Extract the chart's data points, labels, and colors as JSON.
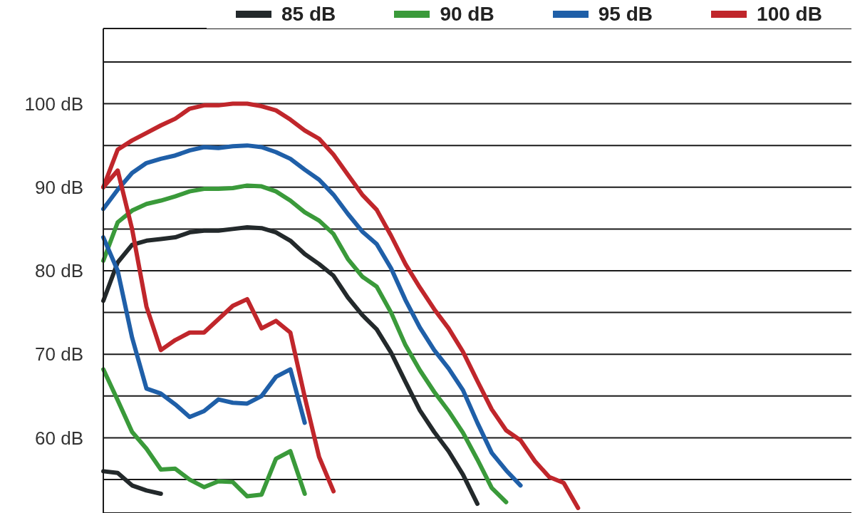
{
  "chart_data": {
    "type": "line",
    "grid": "y",
    "legend": "top",
    "tick_labels": "y",
    "marker": "none",
    "line_style": "solid",
    "categories": [
      null,
      null,
      null,
      null,
      null,
      null,
      null,
      null,
      null,
      null,
      null,
      null,
      null,
      null,
      null,
      null,
      null,
      null,
      null,
      null,
      null,
      null,
      null,
      null,
      null,
      null,
      null,
      null,
      null,
      null,
      null,
      null,
      null,
      null,
      null,
      null,
      null,
      null,
      null,
      null,
      null,
      null,
      null,
      null,
      null,
      null,
      null,
      null,
      null,
      null,
      null,
      null,
      null
    ],
    "ylim": [
      51,
      109
    ],
    "yticks": [
      {
        "value": 55,
        "label": null
      },
      {
        "value": 60,
        "label": "60 dB"
      },
      {
        "value": 65,
        "label": null
      },
      {
        "value": 70,
        "label": "70 dB"
      },
      {
        "value": 75,
        "label": null
      },
      {
        "value": 80,
        "label": "80 dB"
      },
      {
        "value": 85,
        "label": null
      },
      {
        "value": 90,
        "label": "90 dB"
      },
      {
        "value": 95,
        "label": null
      },
      {
        "value": 100,
        "label": "100 dB"
      },
      {
        "value": 105,
        "label": null
      }
    ],
    "series": [
      {
        "name": "85 dB",
        "color": "#23292b",
        "values": [
          76.4,
          81,
          83.1,
          83.6,
          83.8,
          84,
          84.6,
          84.8,
          84.8,
          85,
          85.2,
          85.1,
          84.6,
          83.6,
          82,
          80.8,
          79.4,
          76.8,
          74.7,
          73,
          70.2,
          66.7,
          63.3,
          60.7,
          58.4,
          55.6,
          52.1,
          null,
          null,
          null,
          null,
          null,
          null,
          null,
          null,
          null,
          null,
          null,
          null,
          null,
          null,
          null,
          null,
          null,
          null,
          null,
          null,
          null,
          null,
          null,
          null,
          null,
          null
        ]
      },
      {
        "name": "90 dB",
        "color": "#3a9a3a",
        "values": [
          81.2,
          85.8,
          87.2,
          88,
          88.4,
          88.9,
          89.5,
          89.8,
          89.8,
          89.9,
          90.2,
          90.1,
          89.5,
          88.4,
          87,
          86,
          84.4,
          81.4,
          79.3,
          78.1,
          75,
          71.1,
          68.1,
          65.5,
          63.2,
          60.6,
          57.4,
          54,
          52.3,
          null,
          null,
          null,
          null,
          null,
          null,
          null,
          null,
          null,
          null,
          null,
          null,
          null,
          null,
          null,
          null,
          null,
          null,
          null,
          null,
          null,
          null,
          null,
          null
        ]
      },
      {
        "name": "95 dB",
        "color": "#1f5fa8",
        "values": [
          87.4,
          89.7,
          91.7,
          92.9,
          93.4,
          93.8,
          94.4,
          94.8,
          94.7,
          94.9,
          95,
          94.8,
          94.2,
          93.4,
          92.1,
          90.9,
          89.1,
          86.8,
          84.7,
          83.2,
          80.3,
          76.5,
          73.2,
          70.5,
          68.3,
          65.7,
          61.8,
          58.2,
          56.1,
          54.3,
          null,
          null,
          null,
          null,
          null,
          null,
          null,
          null,
          null,
          null,
          null,
          null,
          null,
          null,
          null,
          null,
          null,
          null,
          null,
          null,
          null,
          null,
          null
        ]
      },
      {
        "name": "100 dB",
        "color": "#c0262b",
        "values": [
          90,
          94.5,
          95.6,
          96.5,
          97.4,
          98.2,
          99.4,
          99.8,
          99.8,
          100,
          100,
          99.7,
          99.2,
          98.1,
          96.8,
          95.8,
          93.9,
          91.5,
          89.1,
          87.3,
          84.2,
          80.8,
          78,
          75.4,
          73.1,
          70.3,
          66.8,
          63.4,
          60.9,
          59.7,
          57.2,
          55.3,
          54.6,
          51.6,
          null,
          null,
          null,
          null,
          null,
          null,
          null,
          null,
          null,
          null,
          null,
          null,
          null,
          null,
          null,
          null,
          null,
          null,
          null
        ]
      },
      {
        "color": "#23292b",
        "values": [
          56,
          55.8,
          54.3,
          53.7,
          53.3,
          null,
          null,
          null,
          null,
          null,
          null,
          null,
          null,
          null,
          null,
          null,
          null,
          null,
          null,
          null,
          null,
          null,
          null,
          null,
          null,
          null,
          null,
          null,
          null,
          null,
          null,
          null,
          null,
          null,
          null,
          null,
          null,
          null,
          null,
          null,
          null,
          null,
          null,
          null,
          null,
          null,
          null,
          null,
          null,
          null,
          null,
          null,
          null
        ]
      },
      {
        "color": "#3a9a3a",
        "values": [
          68.2,
          64.5,
          60.7,
          58.7,
          56.2,
          56.3,
          55,
          54.1,
          54.8,
          54.7,
          53,
          53.2,
          57.5,
          58.4,
          53.3,
          null,
          null,
          null,
          null,
          null,
          null,
          null,
          null,
          null,
          null,
          null,
          null,
          null,
          null,
          null,
          null,
          null,
          null,
          null,
          null,
          null,
          null,
          null,
          null,
          null,
          null,
          null,
          null,
          null,
          null,
          null,
          null,
          null,
          null,
          null,
          null,
          null,
          null
        ]
      },
      {
        "color": "#1f5fa8",
        "values": [
          84,
          80,
          72,
          65.9,
          65.3,
          64,
          62.5,
          63.2,
          64.6,
          64.2,
          64.1,
          65,
          67.3,
          68.2,
          61.8,
          null,
          null,
          null,
          null,
          null,
          null,
          null,
          null,
          null,
          null,
          null,
          null,
          null,
          null,
          null,
          null,
          null,
          null,
          null,
          null,
          null,
          null,
          null,
          null,
          null,
          null,
          null,
          null,
          null,
          null,
          null,
          null,
          null,
          null,
          null,
          null,
          null,
          null
        ]
      },
      {
        "color": "#c0262b",
        "values": [
          90,
          92,
          85,
          75.7,
          70.5,
          71.7,
          72.6,
          72.6,
          74.2,
          75.8,
          76.6,
          73.1,
          74,
          72.6,
          64.9,
          57.7,
          53.6,
          null,
          null,
          null,
          null,
          null,
          null,
          null,
          null,
          null,
          null,
          null,
          null,
          null,
          null,
          null,
          null,
          null,
          null,
          null,
          null,
          null,
          null,
          null,
          null,
          null,
          null,
          null,
          null,
          null,
          null,
          null,
          null,
          null,
          null,
          null,
          null
        ]
      }
    ]
  }
}
